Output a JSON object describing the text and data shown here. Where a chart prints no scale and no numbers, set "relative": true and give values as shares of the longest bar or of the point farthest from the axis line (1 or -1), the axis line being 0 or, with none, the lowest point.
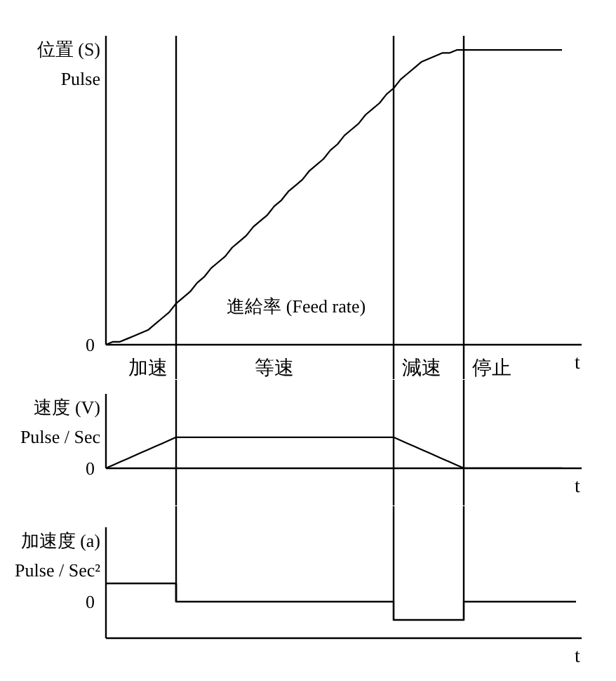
{
  "chart_data": [
    {
      "type": "line",
      "relative": true,
      "ylabel": "位置 (S)\nPulse",
      "xlabel": "t",
      "color": "#000000",
      "tick_labels": "x",
      "categories": [
        null,
        null,
        null,
        null,
        null,
        null,
        "加速",
        null,
        null,
        null,
        null,
        null,
        null,
        null,
        null,
        null,
        null,
        null,
        null,
        null,
        null,
        null,
        null,
        null,
        "等速",
        null,
        null,
        null,
        null,
        null,
        null,
        null,
        null,
        null,
        null,
        null,
        null,
        null,
        null,
        null,
        null,
        null,
        null,
        null,
        null,
        "減速",
        null,
        null,
        null,
        null,
        null,
        null,
        null,
        null,
        null,
        "停止",
        null,
        null,
        null,
        null,
        null,
        null,
        null,
        null,
        null,
        null,
        null,
        null
      ],
      "values": [
        0,
        0.01,
        0.01,
        0.02,
        0.03,
        0.04,
        0.05,
        0.07,
        0.09,
        0.11,
        0.14,
        0.16,
        0.18,
        0.21,
        0.23,
        0.26,
        0.28,
        0.3,
        0.33,
        0.35,
        0.37,
        0.4,
        0.42,
        0.44,
        0.47,
        0.49,
        0.52,
        0.54,
        0.56,
        0.59,
        0.61,
        0.63,
        0.66,
        0.68,
        0.71,
        0.73,
        0.75,
        0.78,
        0.8,
        0.82,
        0.85,
        0.87,
        0.9,
        0.92,
        0.94,
        0.96,
        0.97,
        0.98,
        0.99,
        0.99,
        1.0,
        1.0,
        1.0,
        1.0,
        1.0,
        1.0,
        1.0,
        1.0,
        1.0,
        1.0,
        1.0,
        1.0,
        1.0,
        1.0,
        1.0,
        1.0,
        null,
        null
      ],
      "annotations": [
        "進給率 (Feed rate)",
        "0"
      ]
    },
    {
      "type": "line",
      "relative": true,
      "ylabel": "速度 (V)\nPulse / Sec",
      "xlabel": "t",
      "color": "#000000",
      "categories": [
        null,
        null,
        null,
        null,
        null,
        null,
        null,
        null,
        null,
        null,
        null,
        null,
        null,
        null,
        null,
        null,
        null,
        null,
        null,
        null,
        null,
        null,
        null,
        null,
        null,
        null,
        null,
        null,
        null,
        null,
        null,
        null,
        null,
        null,
        null,
        null,
        null,
        null,
        null,
        null,
        null,
        null,
        null,
        null,
        null,
        null,
        null,
        null,
        null,
        null,
        null,
        null,
        null,
        null,
        null,
        null,
        null,
        null,
        null,
        null,
        null,
        null,
        null,
        null,
        null,
        null,
        null,
        null
      ],
      "values": [
        0,
        0.1,
        0.2,
        0.3,
        0.4,
        0.5,
        0.6,
        0.7,
        0.8,
        0.9,
        1,
        1,
        1,
        1,
        1,
        1,
        1,
        1,
        1,
        1,
        1,
        1,
        1,
        1,
        1,
        1,
        1,
        1,
        1,
        1,
        1,
        1,
        1,
        1,
        1,
        1,
        1,
        1,
        1,
        1,
        1,
        1,
        0.9,
        0.8,
        0.7,
        0.6,
        0.5,
        0.4,
        0.3,
        0.2,
        0.1,
        0,
        0,
        0,
        0,
        0,
        0,
        0,
        0,
        0,
        0,
        0,
        0,
        0,
        0,
        0,
        null,
        null
      ],
      "annotations": [
        "0"
      ]
    },
    {
      "type": "step",
      "relative": true,
      "ylabel": "加速度 (a)\nPulse / Sec²",
      "xlabel": "t",
      "color": "#000000",
      "categories": [
        null,
        null,
        null,
        null,
        null,
        null,
        null,
        null,
        null,
        null,
        null,
        null,
        null,
        null,
        null,
        null,
        null,
        null,
        null,
        null,
        null,
        null,
        null,
        null,
        null,
        null,
        null,
        null,
        null,
        null,
        null,
        null,
        null,
        null,
        null,
        null,
        null,
        null,
        null,
        null,
        null,
        null,
        null,
        null,
        null,
        null,
        null,
        null,
        null,
        null,
        null,
        null,
        null,
        null,
        null,
        null,
        null,
        null,
        null,
        null,
        null,
        null,
        null,
        null,
        null,
        null,
        null,
        null
      ],
      "values": [
        1,
        1,
        1,
        1,
        1,
        1,
        1,
        1,
        1,
        1,
        0,
        0,
        0,
        0,
        0,
        0,
        0,
        0,
        0,
        0,
        0,
        0,
        0,
        0,
        0,
        0,
        0,
        0,
        0,
        0,
        0,
        0,
        0,
        0,
        0,
        0,
        0,
        0,
        0,
        0,
        0,
        -1,
        -1,
        -1,
        -1,
        -1,
        -1,
        -1,
        -1,
        -1,
        -1,
        0,
        0,
        0,
        0,
        0,
        0,
        0,
        0,
        0,
        0,
        0,
        0,
        0,
        0,
        0,
        0,
        0
      ],
      "annotations": [
        "0"
      ]
    }
  ]
}
